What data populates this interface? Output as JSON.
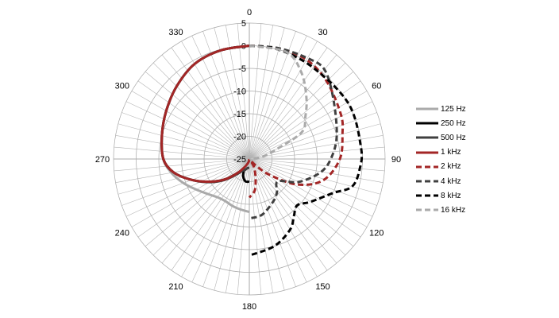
{
  "chart_data": {
    "type": "polar-line",
    "title": "",
    "radial_axis": {
      "min": -25,
      "max": 5,
      "step": 5,
      "tick_labels": [
        "5",
        "0",
        "-5",
        "-10",
        "-15",
        "-20",
        "-25"
      ]
    },
    "angular_axis": {
      "step_degrees": 5,
      "label_step_degrees": 30,
      "direction": "clockwise",
      "zero": "top",
      "tick_labels": [
        "0",
        "30",
        "60",
        "90",
        "120",
        "150",
        "180",
        "210",
        "240",
        "270",
        "300",
        "330"
      ]
    },
    "grid": true,
    "legend": "right",
    "series": [
      {
        "name": "125 Hz",
        "color": "#aaaaaa",
        "dash": false,
        "angles": [
          0,
          345,
          330,
          315,
          300,
          285,
          270,
          260,
          250,
          240,
          230,
          220,
          210,
          200,
          190,
          180
        ],
        "values": [
          0,
          -0.2,
          -0.8,
          -2.3,
          -3.8,
          -5,
          -6,
          -7.5,
          -9.5,
          -11.5,
          -13,
          -14,
          -14.3,
          -14,
          -13.7,
          -13.3
        ]
      },
      {
        "name": "250 Hz",
        "color": "#000000",
        "dash": false,
        "angles": [
          0,
          345,
          330,
          315,
          300,
          285,
          270,
          260,
          250,
          240,
          230,
          220,
          210,
          200,
          190,
          180
        ],
        "values": [
          0,
          -0.2,
          -0.8,
          -2.3,
          -3.8,
          -5,
          -6,
          -8,
          -11.5,
          -15,
          -18,
          -21,
          -22.5,
          -21,
          -20,
          -20
        ]
      },
      {
        "name": "500 Hz",
        "color": "#404040",
        "dash": false,
        "angles": [
          0,
          345,
          330,
          315,
          300,
          285,
          270,
          260,
          250,
          240,
          230,
          220,
          210,
          200,
          190,
          180
        ],
        "values": [
          0,
          -0.2,
          -0.8,
          -2.3,
          -3.8,
          -5,
          -6,
          -8,
          -11.5,
          -14.8,
          -17.8,
          -20.5,
          -22,
          -22.5,
          -23,
          -23
        ]
      },
      {
        "name": "1 kHz",
        "color": "#a32626",
        "dash": false,
        "angles": [
          0,
          345,
          330,
          315,
          300,
          285,
          270,
          260,
          250,
          240,
          230,
          220,
          210,
          200,
          190,
          180
        ],
        "values": [
          0,
          -0.2,
          -0.8,
          -2.3,
          -3.8,
          -5,
          -6,
          -8,
          -11.5,
          -15,
          -18,
          -21,
          -23,
          -24,
          -24.5,
          -25
        ]
      },
      {
        "name": "2 kHz",
        "color": "#a32626",
        "dash": true,
        "angles": [
          0,
          15,
          30,
          45,
          64,
          75,
          90,
          106,
          118,
          128,
          135,
          140,
          150,
          161,
          170,
          180
        ],
        "values": [
          0,
          0.2,
          0.3,
          -0.8,
          -2.5,
          -3.7,
          -5,
          -8,
          -13,
          -19.3,
          -23,
          -24.5,
          -23,
          -20.8,
          -18,
          -16.5
        ]
      },
      {
        "name": "4 kHz",
        "color": "#404040",
        "dash": true,
        "angles": [
          0,
          15,
          30,
          40,
          54,
          75,
          90,
          101,
          115,
          128,
          140,
          150,
          167,
          180
        ],
        "values": [
          0,
          0.3,
          0.7,
          0.8,
          -2.1,
          -5,
          -7,
          -9.1,
          -13,
          -17,
          -15.5,
          -14.3,
          -12.4,
          -11.9
        ]
      },
      {
        "name": "8 kHz",
        "color": "#000000",
        "dash": true,
        "angles": [
          0,
          15,
          35,
          61,
          84,
          95,
          105,
          112,
          125,
          134,
          142,
          150,
          164,
          180
        ],
        "values": [
          0,
          0,
          -0.4,
          0.1,
          -0.2,
          -0.5,
          -1.5,
          -5,
          -8.5,
          -10.3,
          -9,
          -7,
          -5,
          -3.7
        ]
      },
      {
        "name": "16 kHz",
        "color": "#aaaaaa",
        "dash": true,
        "angles": [
          0,
          19,
          31,
          43,
          53,
          63,
          70,
          80,
          95
        ],
        "values": [
          0,
          0,
          -2.7,
          -6.5,
          -9.5,
          -12,
          -18.4,
          -22,
          -25
        ]
      }
    ]
  }
}
